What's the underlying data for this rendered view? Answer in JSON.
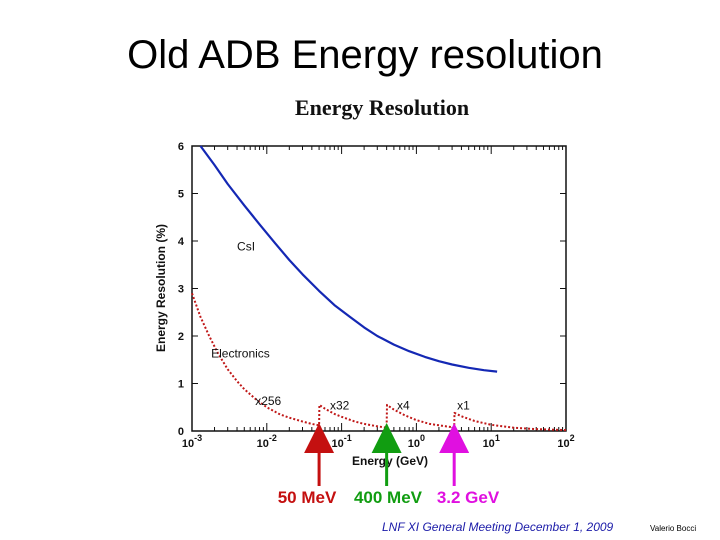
{
  "slide": {
    "title": "Old ADB Energy resolution",
    "footer": "LNF XI General Meeting December 1, 2009",
    "author": "Valerio Bocci"
  },
  "chart_data": {
    "type": "line",
    "title": "Energy Resolution",
    "xlabel": "Energy (GeV)",
    "ylabel": "Energy Resolution (%)",
    "xscale": "log",
    "xlim": [
      0.001,
      100
    ],
    "ylim": [
      0,
      6
    ],
    "xticks": [
      0.001,
      0.01,
      0.1,
      1,
      10,
      100
    ],
    "yticks": [
      0,
      1,
      2,
      3,
      4,
      5,
      6
    ],
    "grid": false,
    "series": [
      {
        "name": "CsI",
        "color": "#1428b4",
        "style": "solid",
        "x": [
          0.0013,
          0.002,
          0.003,
          0.005,
          0.008,
          0.013,
          0.02,
          0.03,
          0.05,
          0.08,
          0.13,
          0.2,
          0.3,
          0.5,
          0.8,
          1.3,
          2,
          3,
          5,
          8,
          12
        ],
        "y": [
          6.0,
          5.6,
          5.2,
          4.75,
          4.35,
          3.95,
          3.6,
          3.3,
          2.95,
          2.65,
          2.4,
          2.18,
          2.0,
          1.82,
          1.68,
          1.56,
          1.47,
          1.4,
          1.33,
          1.28,
          1.25
        ]
      },
      {
        "name": "Electronics",
        "color": "#c01818",
        "style": "dotted",
        "x": [
          0.001,
          0.0013,
          0.0017,
          0.0022,
          0.003,
          0.004,
          0.005,
          0.007,
          0.01,
          0.015,
          0.02,
          0.03,
          0.04,
          0.05,
          0.0505,
          0.06,
          0.08,
          0.1,
          0.15,
          0.2,
          0.3,
          0.4,
          0.405,
          0.5,
          0.7,
          1.0,
          1.5,
          2.0,
          3.0,
          3.2,
          3.23,
          4,
          6,
          10,
          20,
          40,
          100
        ],
        "y": [
          2.9,
          2.4,
          2.0,
          1.65,
          1.3,
          1.05,
          0.88,
          0.68,
          0.5,
          0.35,
          0.28,
          0.2,
          0.15,
          0.12,
          0.55,
          0.47,
          0.36,
          0.3,
          0.2,
          0.15,
          0.1,
          0.07,
          0.55,
          0.45,
          0.33,
          0.23,
          0.15,
          0.12,
          0.08,
          0.07,
          0.38,
          0.31,
          0.21,
          0.13,
          0.07,
          0.04,
          0.02
        ]
      }
    ],
    "annotations": [
      {
        "text": "CsI",
        "x": 0.004,
        "y": 3.8
      },
      {
        "text": "Electronics",
        "x": 0.0018,
        "y": 1.55
      },
      {
        "text": "x256",
        "x": 0.007,
        "y": 0.55
      },
      {
        "text": "x32",
        "x": 0.07,
        "y": 0.45
      },
      {
        "text": "x4",
        "x": 0.55,
        "y": 0.45
      },
      {
        "text": "x1",
        "x": 3.5,
        "y": 0.45
      }
    ],
    "markers": [
      {
        "label": "50 MeV",
        "energy": 0.05,
        "color": "#c41010"
      },
      {
        "label": "400 MeV",
        "energy": 0.4,
        "color": "#119d11"
      },
      {
        "label": "3.2 GeV",
        "energy": 3.2,
        "color": "#e010e0"
      }
    ]
  }
}
